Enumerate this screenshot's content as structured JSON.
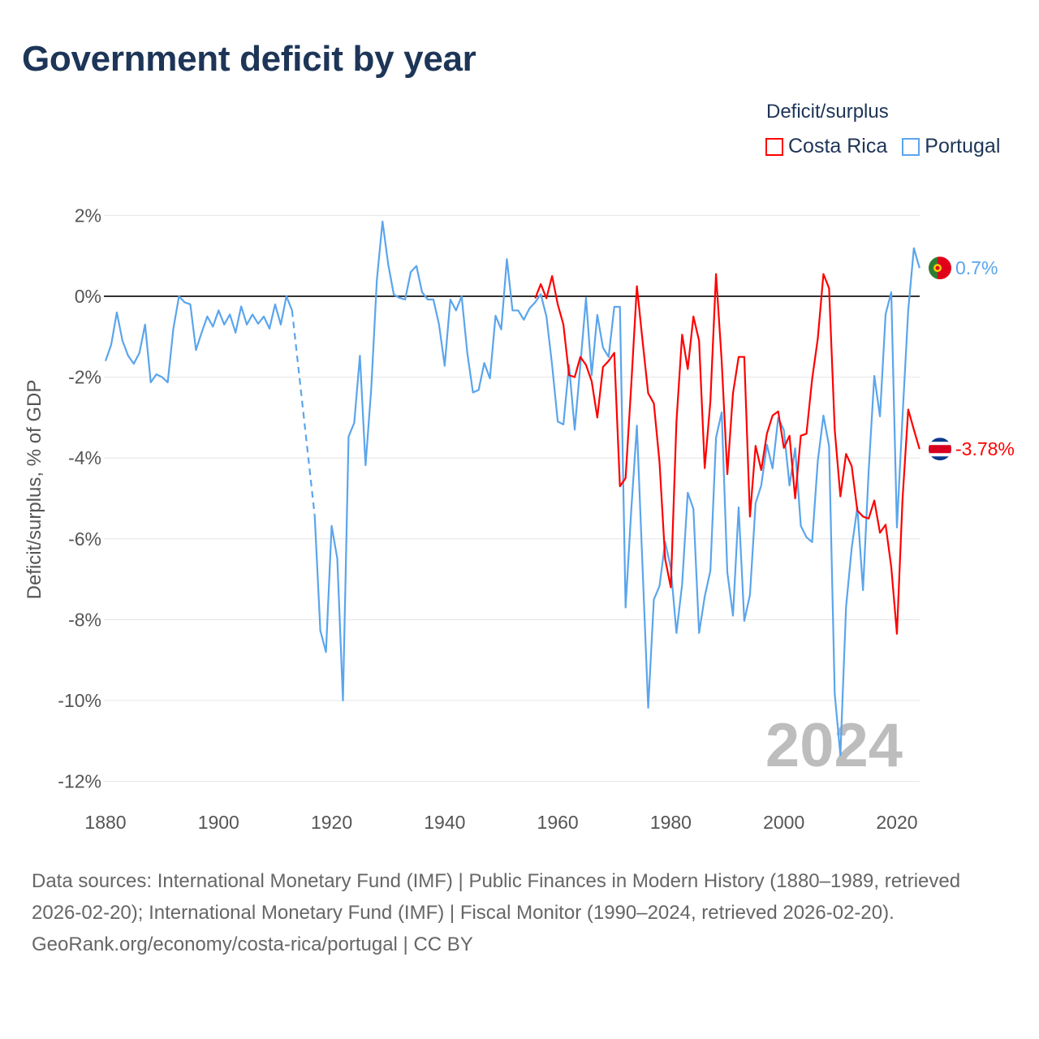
{
  "title": "Government deficit by year",
  "legend": {
    "title": "Deficit/surplus",
    "items": [
      {
        "name": "Costa Rica",
        "color": "#ff0000"
      },
      {
        "name": "Portugal",
        "color": "#5aa5ec"
      }
    ]
  },
  "footer": {
    "sources": "Data sources: International Monetary Fund (IMF) | Public Finances in Modern History (1880–1989, retrieved 2026-02-20); International Monetary Fund (IMF) | Fiscal Monitor (1990–2024, retrieved 2026-02-20).",
    "credit": "GeoRank.org/economy/costa-rica/portugal | CC BY"
  },
  "chart_data": {
    "type": "line",
    "title": "Government deficit by year",
    "xlabel": "",
    "ylabel": "Deficit/surplus, % of GDP",
    "xlim": [
      1880,
      2024
    ],
    "ylim": [
      -12,
      2
    ],
    "xticks": [
      1880,
      1900,
      1920,
      1940,
      1960,
      1980,
      2000,
      2020
    ],
    "yticks": [
      2,
      0,
      -2,
      -4,
      -6,
      -8,
      -10,
      -12
    ],
    "ytick_labels": [
      "2%",
      "0%",
      "-2%",
      "-4%",
      "-6%",
      "-8%",
      "-10%",
      "-12%"
    ],
    "grid": true,
    "legend_position": "top-right",
    "current_year_label": "2024",
    "series": [
      {
        "name": "Portugal",
        "color": "#5aa5ec",
        "start_year": 1880,
        "end_label": "0.7%",
        "values": [
          -1.6,
          -1.2,
          -0.4,
          -1.1,
          -1.47,
          -1.67,
          -1.4,
          -0.7,
          -2.13,
          -1.93,
          -2.0,
          -2.13,
          -0.8,
          0,
          -0.15,
          -0.2,
          -1.33,
          -0.9,
          -0.5,
          -0.75,
          -0.35,
          -0.7,
          -0.45,
          -0.9,
          -0.25,
          -0.7,
          -0.45,
          -0.68,
          -0.5,
          -0.8,
          -0.2,
          -0.7,
          0,
          -0.35,
          null,
          null,
          null,
          -5.42,
          -8.27,
          -8.8,
          -5.68,
          -6.49,
          -10.0,
          -3.47,
          -3.13,
          -1.47,
          -4.18,
          -2.3,
          0.4,
          1.85,
          0.8,
          0.04,
          -0.04,
          -0.08,
          0.6,
          0.75,
          0.1,
          -0.08,
          -0.08,
          -0.7,
          -1.72,
          -0.08,
          -0.35,
          0,
          -1.4,
          -2.38,
          -2.32,
          -1.65,
          -2.03,
          -0.48,
          -0.82,
          0.92,
          -0.35,
          -0.35,
          -0.58,
          -0.3,
          -0.15,
          0.05,
          -0.5,
          -1.7,
          -3.1,
          -3.17,
          -1.7,
          -3.3,
          -1.7,
          -0.04,
          -1.95,
          -0.46,
          -1.27,
          -1.5,
          -0.26,
          -0.26,
          -7.7,
          -5.3,
          -3.2,
          -6.7,
          -10.18,
          -7.5,
          -7.17,
          -6.08,
          -6.72,
          -8.33,
          -7.13,
          -4.86,
          -5.26,
          -8.33,
          -7.43,
          -6.79,
          -3.5,
          -2.87,
          -6.83,
          -7.9,
          -5.22,
          -8.03,
          -7.39,
          -5.12,
          -4.68,
          -3.67,
          -4.26,
          -3.01,
          -3.31,
          -4.68,
          -3.76,
          -5.68,
          -5.96,
          -6.08,
          -4.08,
          -2.95,
          -3.71,
          -9.84,
          -11.35,
          -7.69,
          -6.23,
          -5.22,
          -7.27,
          -4.32,
          -1.97,
          -2.97,
          -0.44,
          0.1,
          -5.72,
          -2.95,
          -0.35,
          1.19,
          0.7
        ]
      },
      {
        "name": "Costa Rica",
        "color": "#ff0000",
        "start_year": 1956,
        "end_label": "-3.78%",
        "values": [
          -0.05,
          0.3,
          -0.05,
          0.5,
          -0.2,
          -0.7,
          -1.95,
          -2.0,
          -1.5,
          -1.7,
          -2.1,
          -3.0,
          -1.75,
          -1.6,
          -1.4,
          -4.7,
          -4.5,
          -2.2,
          0.25,
          -1.1,
          -2.4,
          -2.65,
          -4.1,
          -6.5,
          -7.2,
          -3.1,
          -0.95,
          -1.8,
          -0.5,
          -1.1,
          -4.25,
          -2.6,
          0.55,
          -1.6,
          -4.4,
          -2.4,
          -1.5,
          -1.5,
          -5.45,
          -3.7,
          -4.3,
          -3.4,
          -2.95,
          -2.85,
          -3.75,
          -3.45,
          -5.0,
          -3.45,
          -3.4,
          -2.05,
          -1.05,
          0.55,
          0.2,
          -3.3,
          -4.95,
          -3.9,
          -4.2,
          -5.3,
          -5.45,
          -5.5,
          -5.05,
          -5.85,
          -5.65,
          -6.7,
          -8.35,
          -5.0,
          -2.8,
          -3.3,
          -3.78
        ]
      }
    ]
  }
}
